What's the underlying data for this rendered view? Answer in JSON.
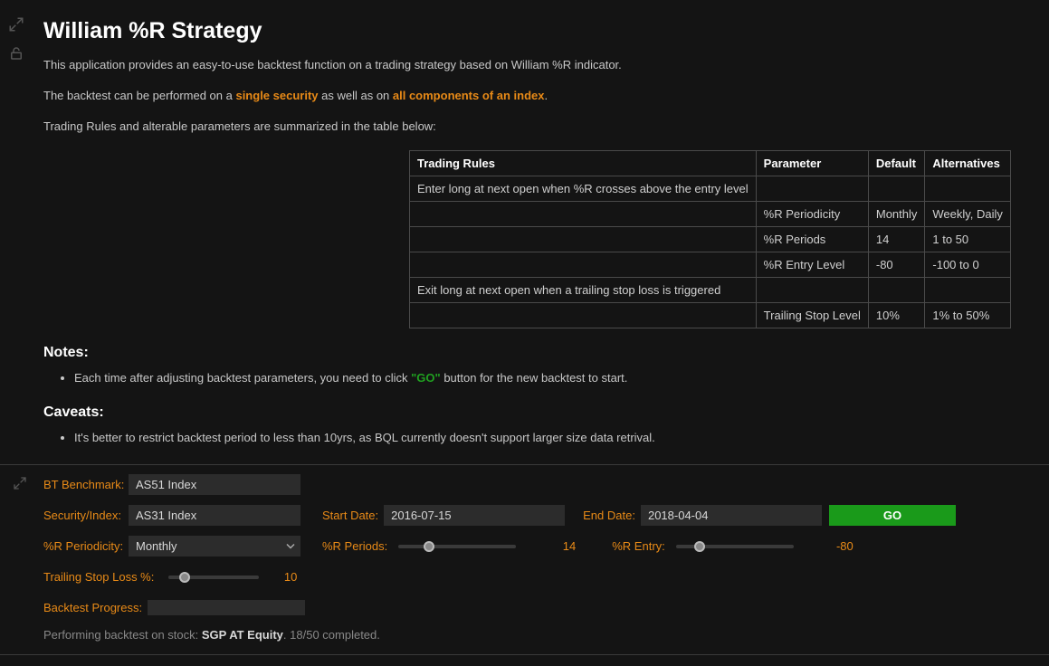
{
  "title": "William %R Strategy",
  "intro1": "This application provides an easy-to-use backtest function on a trading strategy based on William %R indicator.",
  "intro2_pre": "The backtest can be performed on a ",
  "intro2_link1": "single security",
  "intro2_mid": " as well as on ",
  "intro2_link2": "all components of an index",
  "intro2_post": ".",
  "intro3": "Trading Rules and alterable parameters are summarized in the table below:",
  "table": {
    "headers": [
      "Trading Rules",
      "Parameter",
      "Default",
      "Alternatives"
    ],
    "rows": [
      [
        "Enter long at next open when %R crosses above the entry level",
        "",
        "",
        ""
      ],
      [
        "",
        "%R Periodicity",
        "Monthly",
        "Weekly, Daily"
      ],
      [
        "",
        "%R Periods",
        "14",
        "1 to 50"
      ],
      [
        "",
        "%R Entry Level",
        "-80",
        "-100 to 0"
      ],
      [
        "Exit long at next open when a trailing stop loss is triggered",
        "",
        "",
        ""
      ],
      [
        "",
        "Trailing Stop Level",
        "10%",
        "1% to 50%"
      ]
    ]
  },
  "notes_heading": "Notes:",
  "notes_items": {
    "n0_pre": "Each time after adjusting backtest parameters, you need to click ",
    "n0_go": "\"GO\"",
    "n0_post": " button for the new backtest to start."
  },
  "caveats_heading": "Caveats:",
  "caveats_items": {
    "c0": "It's better to restrict backtest period to less than 10yrs, as BQL currently doesn't support larger size data retrival."
  },
  "controls": {
    "benchmark_label": "BT Benchmark:",
    "benchmark_value": "AS51 Index",
    "security_label": "Security/Index:",
    "security_value": "AS31 Index",
    "start_label": "Start Date:",
    "start_value": "2016-07-15",
    "end_label": "End Date:",
    "end_value": "2018-04-04",
    "go_label": "GO",
    "periodicity_label": "%R Periodicity:",
    "periodicity_value": "Monthly",
    "periods_label": "%R Periods:",
    "periods_value": "14",
    "periods_pct": 26,
    "entry_label": "%R Entry:",
    "entry_value": "-80",
    "entry_pct": 20,
    "stop_label": "Trailing Stop Loss %:",
    "stop_value": "10",
    "stop_pct": 18,
    "progress_label": "Backtest Progress:",
    "progress_pct": 36,
    "status_pre": "Performing backtest on stock: ",
    "status_stock": "SGP AT Equity",
    "status_post": ". 18/50 completed."
  },
  "colors": {
    "bg": "#141414",
    "text": "#cccccc",
    "accent": "#e88a17",
    "green": "#1a9a1a",
    "progress": "#1a7fe0",
    "input_bg": "#2c2c2c"
  }
}
